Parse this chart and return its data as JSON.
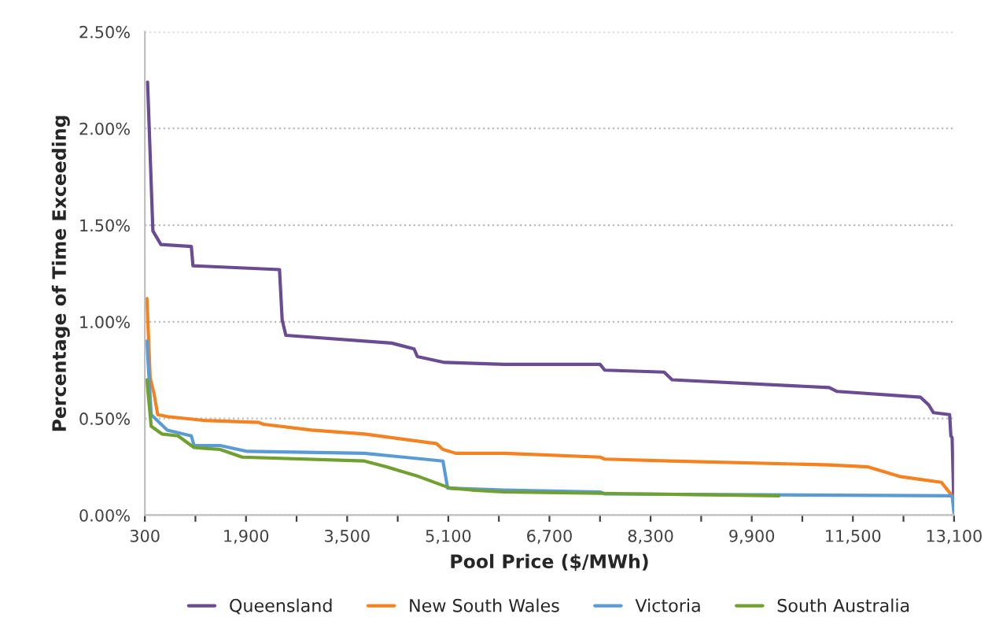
{
  "chart_data": {
    "type": "line",
    "xlabel": "Pool Price ($/MWh)",
    "ylabel": "Percentage of Time Exceeding",
    "xlim": [
      300,
      13100
    ],
    "ylim": [
      0,
      2.5
    ],
    "xticks": [
      300,
      {
        "value": 1100,
        "label": null
      },
      {
        "value": 1900,
        "label": "1,900"
      },
      {
        "value": 2700,
        "label": null
      },
      {
        "value": 3500,
        "label": "3,500"
      },
      {
        "value": 4300,
        "label": null
      },
      {
        "value": 5100,
        "label": "5,100"
      },
      {
        "value": 5900,
        "label": null
      },
      {
        "value": 6700,
        "label": "6,700"
      },
      {
        "value": 7500,
        "label": null
      },
      {
        "value": 8300,
        "label": "8,300"
      },
      {
        "value": 9100,
        "label": null
      },
      {
        "value": 9900,
        "label": "9,900"
      },
      {
        "value": 10700,
        "label": null
      },
      {
        "value": 11500,
        "label": "11,500"
      },
      {
        "value": 12300,
        "label": null
      },
      {
        "value": 13100,
        "label": "13,100"
      }
    ],
    "yticks": [
      {
        "value": 0,
        "label": "0.00%"
      },
      {
        "value": 0.5,
        "label": "0.50%"
      },
      {
        "value": 1.0,
        "label": "1.00%"
      },
      {
        "value": 1.5,
        "label": "1.50%"
      },
      {
        "value": 2.0,
        "label": "2.00%"
      },
      {
        "value": 2.5,
        "label": "2.50%"
      }
    ],
    "grid": "y",
    "legend": "bottom",
    "marker": "none",
    "line_style": "solid",
    "series": [
      {
        "name": "Queensland",
        "color": "#6a4c93",
        "x": [
          343,
          427,
          554,
          1035,
          1061,
          2430,
          2472,
          2530,
          4204,
          4559,
          4610,
          5040,
          5978,
          7500,
          7575,
          8514,
          8640,
          11125,
          11250,
          12570,
          12700,
          12775,
          13030,
          13050,
          13070,
          13100
        ],
        "values": [
          2.24,
          1.47,
          1.4,
          1.39,
          1.29,
          1.27,
          1.01,
          0.93,
          0.89,
          0.86,
          0.82,
          0.79,
          0.78,
          0.78,
          0.75,
          0.74,
          0.7,
          0.66,
          0.64,
          0.61,
          0.57,
          0.53,
          0.52,
          0.41,
          0.4,
          0.02
        ]
      },
      {
        "name": "New South Wales",
        "color": "#f58220",
        "x": [
          333,
          384,
          444,
          503,
          655,
          1240,
          2100,
          2176,
          2936,
          3773,
          4914,
          5015,
          5218,
          5978,
          7500,
          7575,
          8590,
          11125,
          11730,
          12240,
          12900,
          13070
        ],
        "values": [
          1.12,
          0.71,
          0.63,
          0.52,
          0.51,
          0.49,
          0.48,
          0.47,
          0.44,
          0.42,
          0.37,
          0.34,
          0.32,
          0.32,
          0.3,
          0.29,
          0.28,
          0.26,
          0.25,
          0.2,
          0.17,
          0.1
        ]
      },
      {
        "name": "Victoria",
        "color": "#5b9bd5",
        "x": [
          333,
          400,
          655,
          1035,
          1078,
          1490,
          1920,
          3773,
          5015,
          5090,
          5978,
          7500,
          7575,
          13070,
          13100
        ],
        "values": [
          0.9,
          0.52,
          0.44,
          0.41,
          0.36,
          0.36,
          0.33,
          0.32,
          0.28,
          0.14,
          0.13,
          0.12,
          0.11,
          0.1,
          0.01
        ]
      },
      {
        "name": "South Australia",
        "color": "#70a030",
        "x": [
          333,
          400,
          570,
          825,
          1078,
          1490,
          1840,
          3773,
          4120,
          4630,
          5130,
          5471,
          5978,
          10330
        ],
        "values": [
          0.7,
          0.46,
          0.42,
          0.41,
          0.35,
          0.34,
          0.3,
          0.28,
          0.25,
          0.2,
          0.14,
          0.13,
          0.12,
          0.1
        ]
      }
    ]
  }
}
